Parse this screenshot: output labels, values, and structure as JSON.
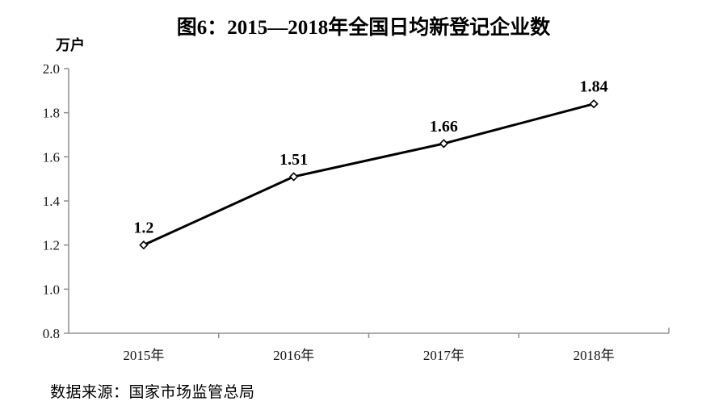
{
  "page": {
    "background": "#ffffff"
  },
  "chart_data": {
    "type": "line",
    "title": "图6：2015—2018年全国日均新登记企业数",
    "unit_label": "万户",
    "categories": [
      "2015年",
      "2016年",
      "2017年",
      "2018年"
    ],
    "values": [
      1.2,
      1.51,
      1.66,
      1.84
    ],
    "data_labels": [
      "1.2",
      "1.51",
      "1.66",
      "1.84"
    ],
    "ylim": [
      0.8,
      2.0
    ],
    "ytick_step": 0.2,
    "ytick_labels": [
      "0.8",
      "1.0",
      "1.2",
      "1.4",
      "1.6",
      "1.8",
      "2.0"
    ],
    "grid": false,
    "legend": "none",
    "line_color": "#000000",
    "marker": "open-diamond",
    "marker_fill": "#ffffff",
    "axis_color": "#8f8f8f",
    "source": "数据来源：国家市场监管总局"
  }
}
